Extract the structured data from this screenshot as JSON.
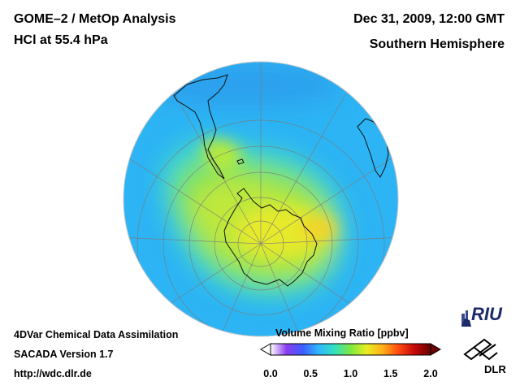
{
  "header": {
    "title_left_1": "GOME–2 / MetOp Analysis",
    "title_left_2": "HCl at 55.4 hPa",
    "title_right_1": "Dec 31, 2009, 12:00 GMT",
    "title_right_2": "Southern Hemisphere"
  },
  "footer": {
    "line1": "4DVar Chemical Data Assimilation",
    "line2": "SACADA Version 1.7",
    "line3": "http://wdc.dlr.de"
  },
  "colorbar": {
    "title": "Volume Mixing Ratio [ppbv]",
    "min": 0.0,
    "max": 2.0,
    "ticks": [
      "0.0",
      "0.5",
      "1.0",
      "1.5",
      "2.0"
    ],
    "tick_values": [
      0.0,
      0.5,
      1.0,
      1.5,
      2.0
    ],
    "colors": [
      "#ffffff",
      "#8a3cf0",
      "#3c5cff",
      "#2fb6ff",
      "#33e0c0",
      "#7de840",
      "#e8ee22",
      "#ffb018",
      "#ff4a10",
      "#c40808",
      "#6a0000"
    ]
  },
  "logos": {
    "riu": "RIU",
    "dlr": "DLR"
  },
  "map": {
    "projection": "orthographic-south-polar",
    "field": "HCl",
    "pressure_level_hpa": 55.4
  }
}
